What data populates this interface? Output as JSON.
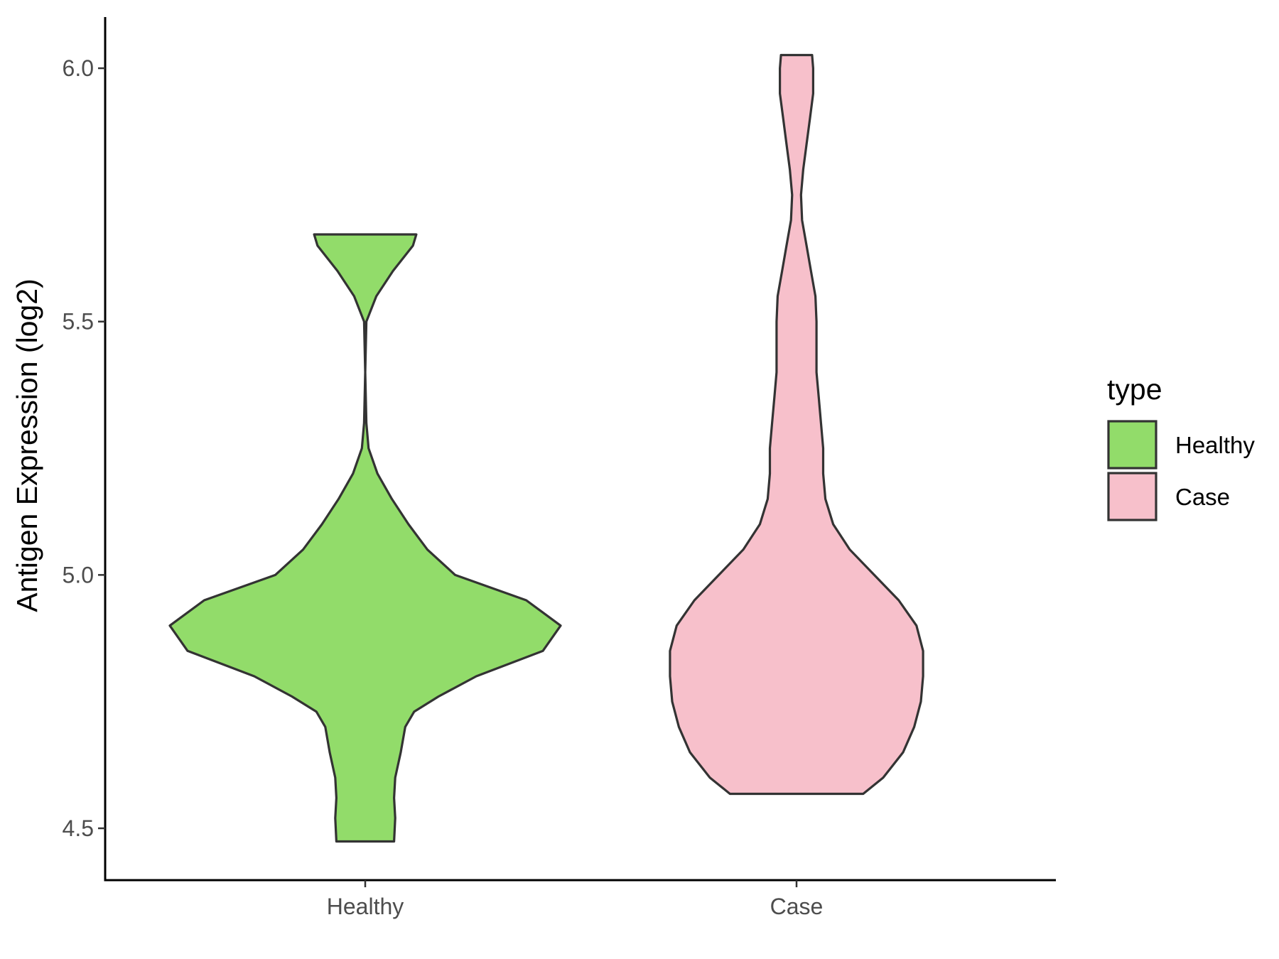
{
  "chart_data": {
    "type": "violin",
    "title": "",
    "xlabel": "",
    "ylabel": "Antigen Expression (log2)",
    "categories": [
      "Healthy",
      "Case"
    ],
    "y_ticks": [
      4.5,
      5.0,
      5.5,
      6.0
    ],
    "y_tick_labels": [
      "4.5",
      "5.0",
      "5.5",
      "6.0"
    ],
    "ylim": [
      4.42,
      6.1
    ],
    "legend": {
      "title": "type",
      "position": "right",
      "entries": [
        {
          "label": "Healthy",
          "color": "#92DC6A"
        },
        {
          "label": "Case",
          "color": "#F7C0CB"
        }
      ]
    },
    "series": [
      {
        "category": "Healthy",
        "color": "#92DC6A",
        "y_min": 4.474,
        "y_max": 5.672,
        "density": [
          [
            4.474,
            0.26
          ],
          [
            4.52,
            0.27
          ],
          [
            4.56,
            0.26
          ],
          [
            4.6,
            0.27
          ],
          [
            4.65,
            0.32
          ],
          [
            4.7,
            0.36
          ],
          [
            4.73,
            0.44
          ],
          [
            4.76,
            0.66
          ],
          [
            4.8,
            1.0
          ],
          [
            4.85,
            1.6
          ],
          [
            4.9,
            1.76
          ],
          [
            4.95,
            1.45
          ],
          [
            5.0,
            0.81
          ],
          [
            5.05,
            0.56
          ],
          [
            5.1,
            0.39
          ],
          [
            5.15,
            0.24
          ],
          [
            5.2,
            0.11
          ],
          [
            5.25,
            0.03
          ],
          [
            5.3,
            0.01
          ],
          [
            5.4,
            0.0
          ],
          [
            5.5,
            0.01
          ],
          [
            5.55,
            0.1
          ],
          [
            5.6,
            0.25
          ],
          [
            5.65,
            0.43
          ],
          [
            5.672,
            0.46
          ]
        ]
      },
      {
        "category": "Case",
        "color": "#F7C0CB",
        "y_min": 4.568,
        "y_max": 6.026,
        "density": [
          [
            4.568,
            0.6
          ],
          [
            4.6,
            0.78
          ],
          [
            4.65,
            0.96
          ],
          [
            4.7,
            1.06
          ],
          [
            4.75,
            1.12
          ],
          [
            4.8,
            1.14
          ],
          [
            4.85,
            1.14
          ],
          [
            4.9,
            1.08
          ],
          [
            4.95,
            0.92
          ],
          [
            5.0,
            0.7
          ],
          [
            5.05,
            0.48
          ],
          [
            5.1,
            0.33
          ],
          [
            5.15,
            0.26
          ],
          [
            5.2,
            0.24
          ],
          [
            5.25,
            0.24
          ],
          [
            5.3,
            0.22
          ],
          [
            5.35,
            0.2
          ],
          [
            5.4,
            0.18
          ],
          [
            5.45,
            0.18
          ],
          [
            5.5,
            0.18
          ],
          [
            5.55,
            0.17
          ],
          [
            5.6,
            0.13
          ],
          [
            5.65,
            0.09
          ],
          [
            5.7,
            0.05
          ],
          [
            5.75,
            0.04
          ],
          [
            5.8,
            0.06
          ],
          [
            5.85,
            0.09
          ],
          [
            5.9,
            0.12
          ],
          [
            5.95,
            0.15
          ],
          [
            6.0,
            0.15
          ],
          [
            6.026,
            0.14
          ]
        ]
      }
    ]
  }
}
